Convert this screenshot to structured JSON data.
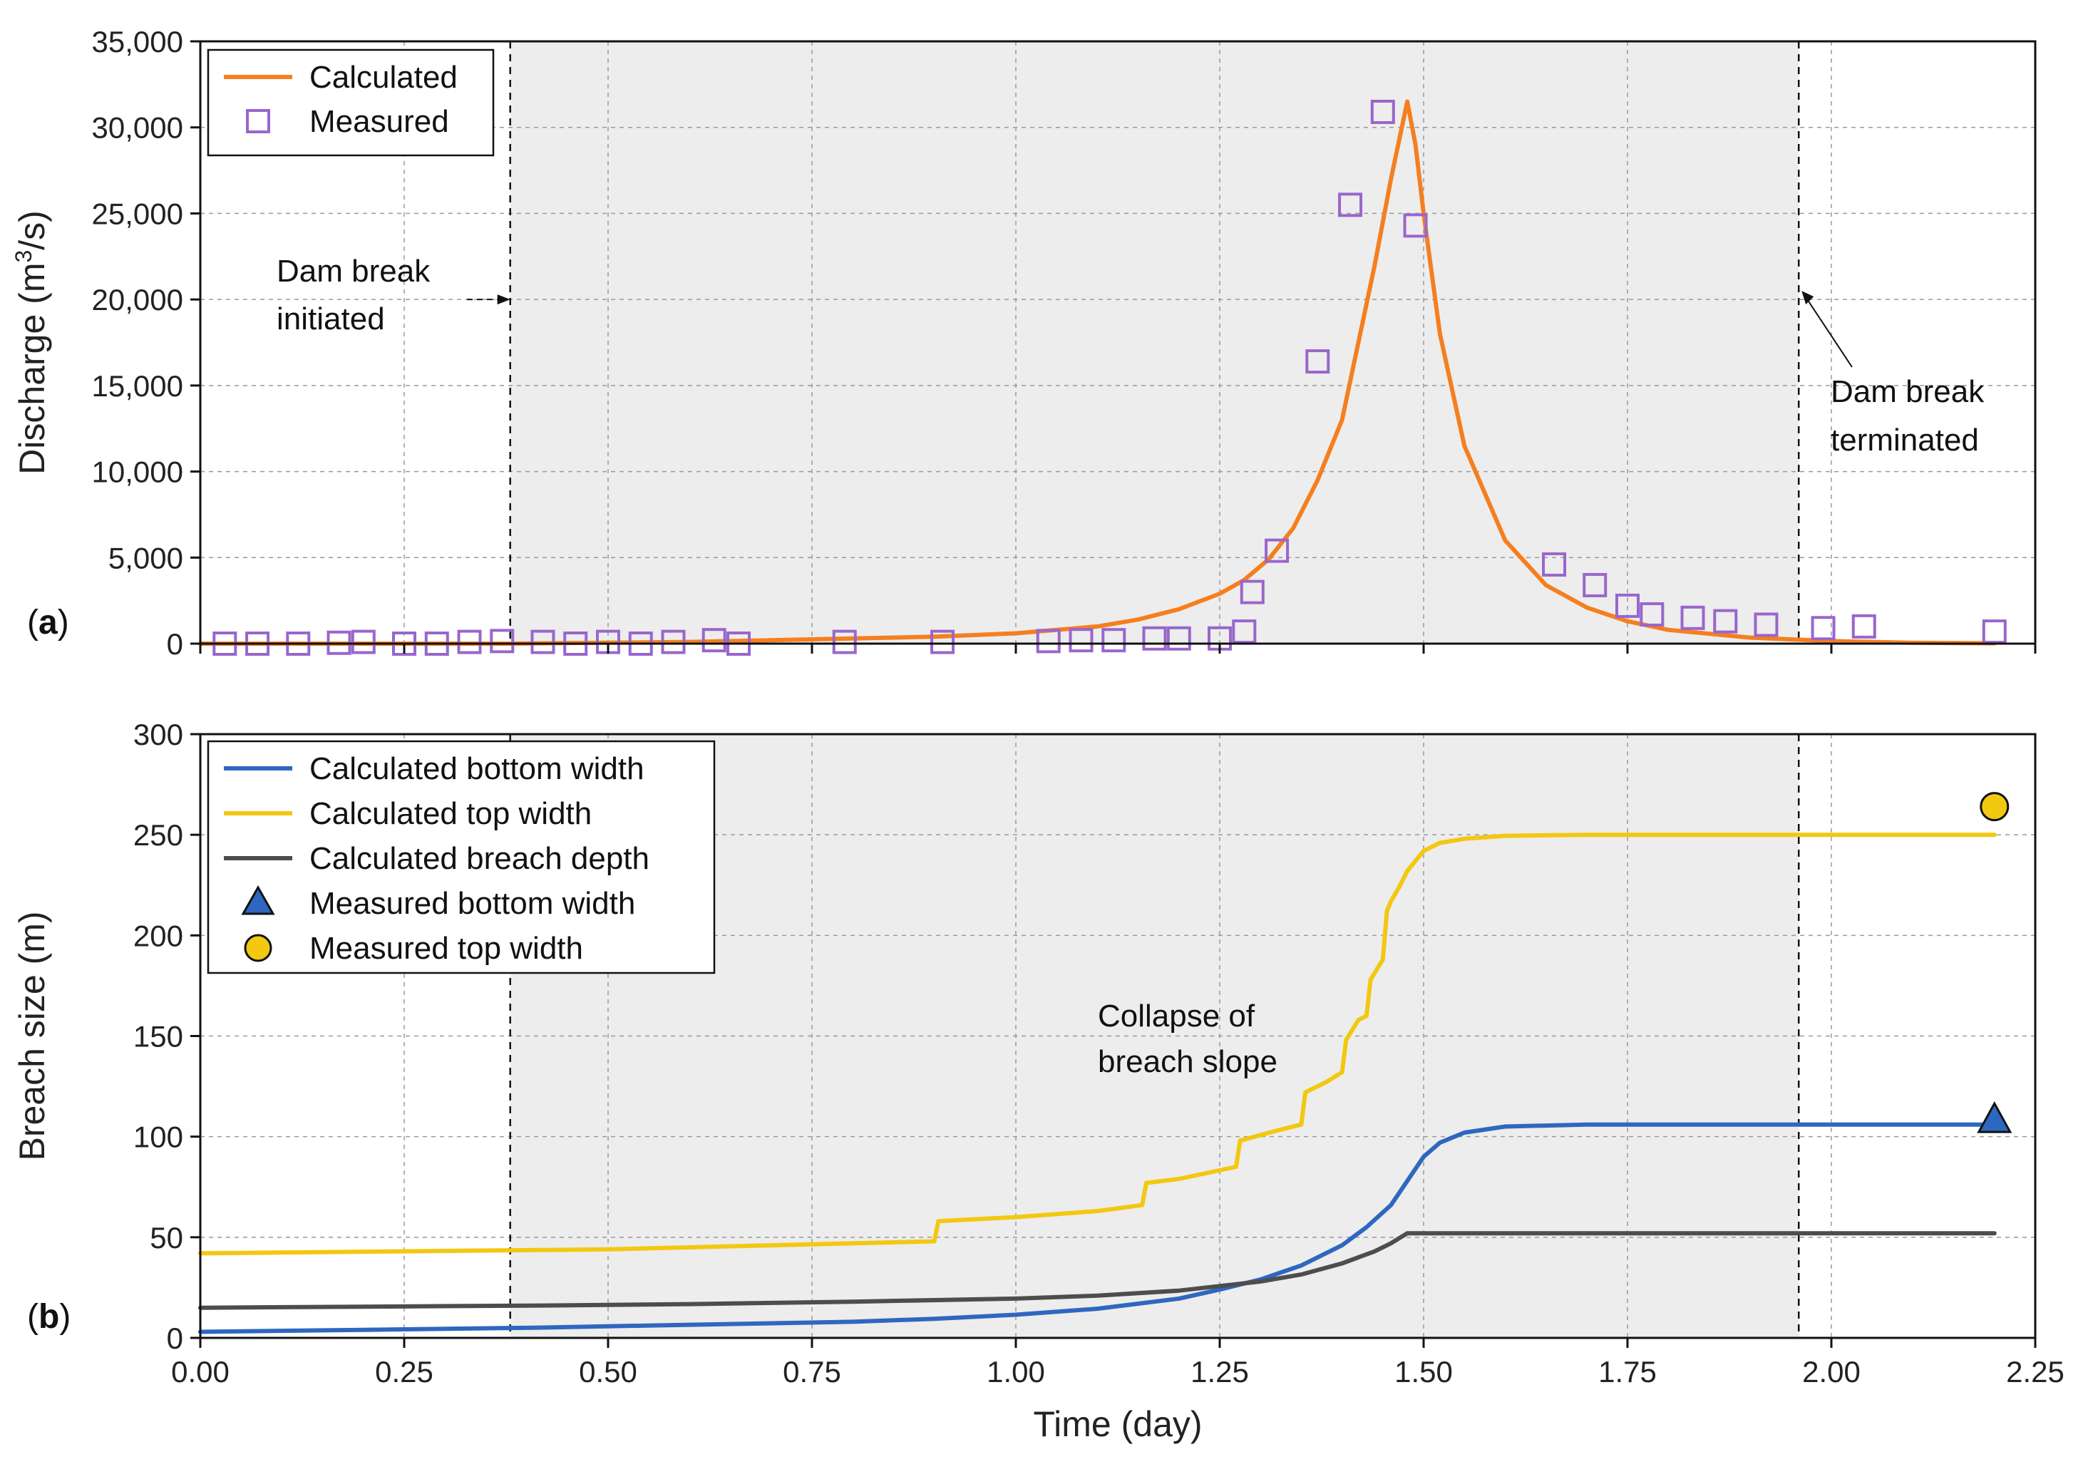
{
  "colors": {
    "calculated": "#F57F20",
    "measured": "#9966CC",
    "bottom_width": "#2E67C0",
    "top_width": "#F2C811",
    "breach_depth": "#4D4D4D",
    "shade": "#EDEDED"
  },
  "chart_data": [
    {
      "id": "a",
      "type": "line",
      "panel_label": "a",
      "xlabel": "Time (day)",
      "ylabel_prefix": "Discharge (m",
      "ylabel_sup": "3",
      "ylabel_suffix": "/s)",
      "xlim": [
        0,
        2.25
      ],
      "ylim": [
        0,
        35000
      ],
      "grid": true,
      "legend_position": "top-left",
      "x_ticks": [
        0,
        0.25,
        0.5,
        0.75,
        1.0,
        1.25,
        1.5,
        1.75,
        2.0,
        2.25
      ],
      "y_ticks": [
        0,
        5000,
        10000,
        15000,
        20000,
        25000,
        30000,
        35000
      ],
      "y_tick_labels": [
        "0",
        "5,000",
        "10,000",
        "15,000",
        "20,000",
        "25,000",
        "30,000",
        "35,000"
      ],
      "shaded_interval": [
        0.38,
        1.96
      ],
      "vlines": [
        0.38,
        1.96
      ],
      "series": [
        {
          "name": "Calculated",
          "kind": "line",
          "color_key": "calculated",
          "x": [
            0,
            0.38,
            0.6,
            0.75,
            0.9,
            1.0,
            1.1,
            1.15,
            1.2,
            1.25,
            1.28,
            1.31,
            1.34,
            1.37,
            1.4,
            1.42,
            1.44,
            1.46,
            1.48,
            1.49,
            1.5,
            1.52,
            1.55,
            1.6,
            1.65,
            1.7,
            1.75,
            1.8,
            1.9,
            2.0,
            2.1,
            2.2
          ],
          "y": [
            0,
            0,
            100,
            250,
            400,
            600,
            1000,
            1400,
            2000,
            2900,
            3700,
            4900,
            6700,
            9500,
            13000,
            17500,
            22000,
            27000,
            31500,
            29000,
            25000,
            18000,
            11500,
            6000,
            3400,
            2100,
            1300,
            800,
            350,
            150,
            50,
            20
          ]
        },
        {
          "name": "Measured",
          "kind": "square",
          "color_key": "measured",
          "x": [
            0.03,
            0.07,
            0.12,
            0.17,
            0.2,
            0.25,
            0.29,
            0.33,
            0.37,
            0.42,
            0.46,
            0.5,
            0.54,
            0.58,
            0.63,
            0.66,
            0.79,
            0.91,
            1.04,
            1.08,
            1.12,
            1.17,
            1.2,
            1.25,
            1.28,
            1.29,
            1.32,
            1.37,
            1.41,
            1.45,
            1.49,
            1.66,
            1.71,
            1.75,
            1.78,
            1.83,
            1.87,
            1.92,
            1.99,
            2.04,
            2.2
          ],
          "y": [
            0,
            0,
            0,
            50,
            100,
            0,
            0,
            100,
            150,
            100,
            0,
            100,
            0,
            100,
            200,
            0,
            100,
            100,
            150,
            200,
            200,
            300,
            300,
            300,
            700,
            3000,
            5400,
            16400,
            25500,
            30900,
            24300,
            4600,
            3400,
            2200,
            1700,
            1500,
            1300,
            1100,
            900,
            1000,
            700
          ]
        }
      ],
      "annotations": [
        {
          "lines": [
            "Dam break",
            "initiated"
          ],
          "target_x": 0.38,
          "target_y": 20000
        },
        {
          "lines": [
            "Dam break",
            "terminated"
          ],
          "target_x": 1.96,
          "target_y": 20500
        }
      ]
    },
    {
      "id": "b",
      "type": "line",
      "panel_label": "b",
      "xlabel": "Time (day)",
      "ylabel": "Breach size (m)",
      "xlim": [
        0,
        2.25
      ],
      "ylim": [
        0,
        300
      ],
      "grid": true,
      "legend_position": "top-left",
      "x_ticks": [
        0,
        0.25,
        0.5,
        0.75,
        1.0,
        1.25,
        1.5,
        1.75,
        2.0,
        2.25
      ],
      "x_tick_labels": [
        "0.00",
        "0.25",
        "0.50",
        "0.75",
        "1.00",
        "1.25",
        "1.50",
        "1.75",
        "2.00",
        "2.25"
      ],
      "y_ticks": [
        0,
        50,
        100,
        150,
        200,
        250,
        300
      ],
      "y_tick_labels": [
        "0",
        "50",
        "100",
        "150",
        "200",
        "250",
        "300"
      ],
      "shaded_interval": [
        0.38,
        1.96
      ],
      "vlines": [
        0.38,
        1.96
      ],
      "series": [
        {
          "name": "Calculated bottom width",
          "kind": "line",
          "color_key": "bottom_width",
          "x": [
            0,
            0.2,
            0.4,
            0.6,
            0.8,
            0.9,
            1.0,
            1.1,
            1.2,
            1.25,
            1.3,
            1.35,
            1.4,
            1.43,
            1.46,
            1.48,
            1.5,
            1.52,
            1.55,
            1.6,
            1.7,
            1.8,
            2.0,
            2.2
          ],
          "y": [
            3,
            4,
            5,
            6.5,
            8,
            9.5,
            11.5,
            14.5,
            19.5,
            24,
            29,
            36,
            46,
            55,
            66,
            78,
            90,
            97,
            102,
            105,
            106,
            106,
            106,
            106
          ]
        },
        {
          "name": "Calculated top width",
          "kind": "line",
          "color_key": "top_width",
          "x": [
            0,
            0.5,
            0.9,
            0.905,
            1.0,
            1.1,
            1.155,
            1.16,
            1.2,
            1.27,
            1.275,
            1.32,
            1.35,
            1.355,
            1.38,
            1.4,
            1.405,
            1.42,
            1.43,
            1.435,
            1.45,
            1.455,
            1.46,
            1.47,
            1.48,
            1.49,
            1.5,
            1.52,
            1.55,
            1.6,
            1.7,
            2.0,
            2.2
          ],
          "y": [
            42,
            44,
            48,
            58,
            60,
            63,
            66,
            77,
            79,
            85,
            98,
            103,
            106,
            122,
            127,
            132,
            148,
            158,
            160,
            178,
            188,
            212,
            217,
            224,
            232,
            237,
            242,
            246,
            248,
            249.5,
            250,
            250,
            250
          ]
        },
        {
          "name": "Calculated breach depth",
          "kind": "line",
          "color_key": "breach_depth",
          "x": [
            0,
            0.2,
            0.4,
            0.6,
            0.8,
            1.0,
            1.1,
            1.2,
            1.3,
            1.35,
            1.4,
            1.44,
            1.46,
            1.48,
            1.5,
            1.7,
            2.0,
            2.2
          ],
          "y": [
            15,
            15.5,
            16,
            16.8,
            18,
            19.5,
            21,
            23.5,
            28,
            31.5,
            37,
            43,
            47,
            52,
            52,
            52,
            52,
            52
          ]
        },
        {
          "name": "Measured bottom width",
          "kind": "triangle",
          "color_key": "bottom_width",
          "x": [
            2.2
          ],
          "y": [
            108
          ]
        },
        {
          "name": "Measured top width",
          "kind": "circle",
          "color_key": "top_width",
          "x": [
            2.2
          ],
          "y": [
            264
          ]
        }
      ],
      "annotations": [
        {
          "lines": [
            "Collapse of",
            "breach slope"
          ],
          "anchor_x": 1.11,
          "anchor_y": 160
        }
      ]
    }
  ]
}
